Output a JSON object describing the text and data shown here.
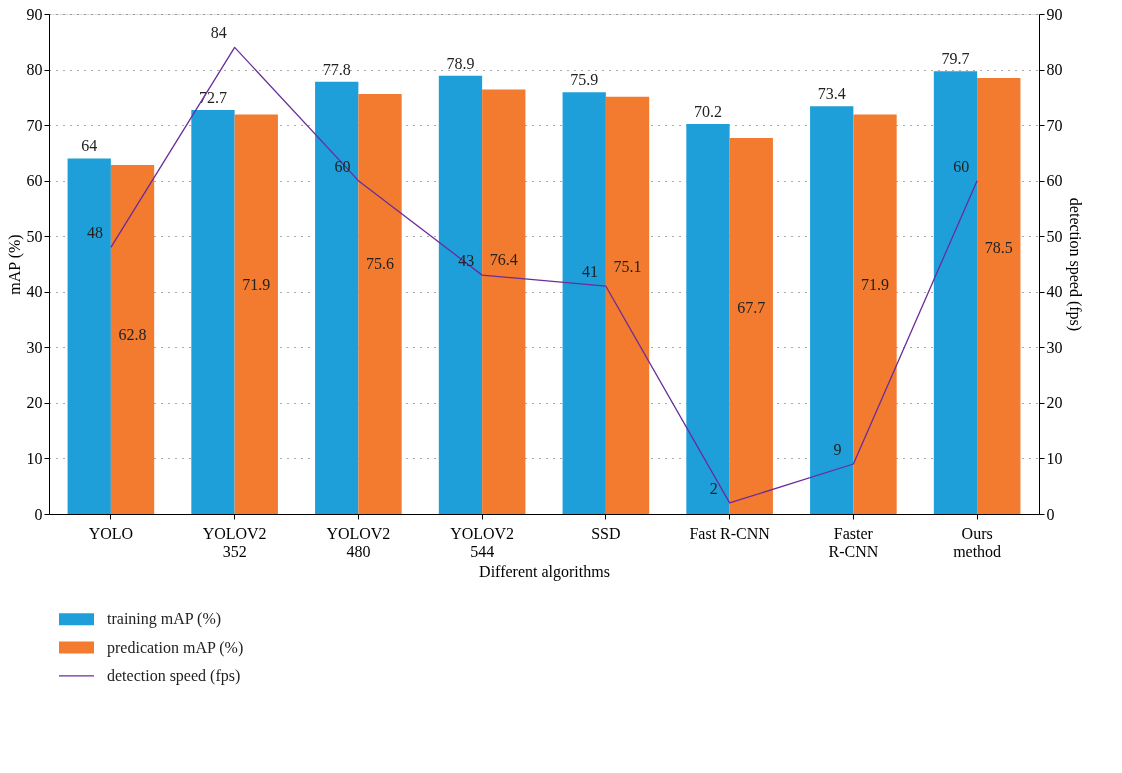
{
  "chart_data": {
    "type": "bar",
    "categories": [
      "YOLO",
      "YOLOV2\n352",
      "YOLOV2\n480",
      "YOLOV2\n544",
      "SSD",
      "Fast R-CNN",
      "Faster\nR-CNN",
      "Ours\nmethod"
    ],
    "xlabel": "Different algorithms",
    "ylabel": "mAP (%)",
    "y2label": "detection speed (fps)",
    "series": [
      {
        "name": "training mAP (%)",
        "color": "#1f9fd9",
        "values": [
          64,
          72.7,
          77.8,
          78.9,
          75.9,
          70.2,
          73.4,
          79.7
        ]
      },
      {
        "name": "predication mAP (%)",
        "color": "#f37b2f",
        "values": [
          62.8,
          71.9,
          75.6,
          76.4,
          75.1,
          67.7,
          71.9,
          78.5
        ]
      },
      {
        "name": "detection speed (fps)",
        "type": "line",
        "axis": "y2",
        "color": "#6a2c9a",
        "values": [
          48,
          84,
          60,
          43,
          41,
          2,
          9,
          60
        ]
      }
    ],
    "ylim": [
      0,
      90
    ],
    "yticks": [
      0,
      10,
      20,
      30,
      40,
      50,
      60,
      70,
      80,
      90
    ],
    "y2lim": [
      0,
      90
    ],
    "y2ticks": [
      0,
      10,
      20,
      30,
      40,
      50,
      60,
      70,
      80,
      90
    ],
    "grid": "y",
    "legend": "bottom left",
    "data_labels": true,
    "marker": "none",
    "line_style": "solid"
  }
}
